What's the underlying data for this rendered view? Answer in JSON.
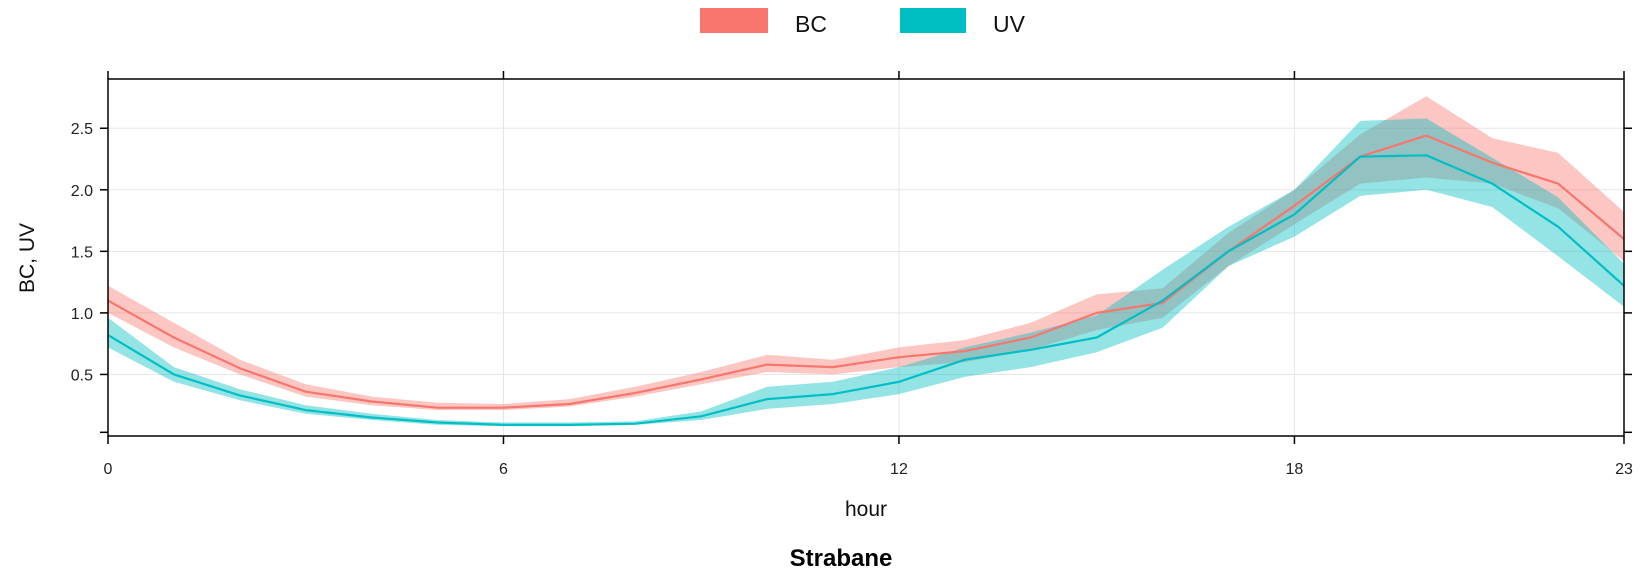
{
  "chart_data": {
    "type": "line",
    "xlabel": "hour",
    "ylabel": "BC, UV",
    "caption": "Strabane",
    "xlim": [
      0,
      23
    ],
    "ylim": [
      0,
      2.9
    ],
    "xticks": [
      0,
      6,
      12,
      18,
      23
    ],
    "yticks": [
      0.5,
      1.0,
      1.5,
      2.0,
      2.5
    ],
    "ytick_labels": [
      "0.5",
      "1.0",
      "1.5",
      "2.0",
      "2.5"
    ],
    "grid": true,
    "legend_position": "top",
    "series": [
      {
        "name": "BC",
        "color": "#F8766D",
        "x": [
          0,
          1,
          2,
          3,
          4,
          5,
          6,
          7,
          8,
          9,
          10,
          11,
          12,
          13,
          14,
          15,
          16,
          17,
          18,
          19,
          20,
          21,
          22,
          23
        ],
        "y": [
          1.1,
          0.8,
          0.55,
          0.36,
          0.28,
          0.23,
          0.23,
          0.26,
          0.35,
          0.46,
          0.58,
          0.56,
          0.64,
          0.69,
          0.8,
          1.0,
          1.08,
          1.5,
          1.87,
          2.27,
          2.44,
          2.22,
          2.05,
          1.6
        ],
        "lower": [
          1.0,
          0.72,
          0.5,
          0.32,
          0.25,
          0.21,
          0.21,
          0.24,
          0.32,
          0.42,
          0.52,
          0.5,
          0.56,
          0.6,
          0.7,
          0.86,
          0.96,
          1.38,
          1.72,
          2.05,
          2.1,
          2.05,
          1.85,
          1.42
        ],
        "upper": [
          1.22,
          0.92,
          0.62,
          0.42,
          0.32,
          0.27,
          0.26,
          0.3,
          0.4,
          0.52,
          0.66,
          0.62,
          0.72,
          0.78,
          0.92,
          1.15,
          1.2,
          1.65,
          2.0,
          2.45,
          2.76,
          2.42,
          2.3,
          1.82
        ]
      },
      {
        "name": "UV",
        "color": "#00BFC4",
        "x": [
          0,
          1,
          2,
          3,
          4,
          5,
          6,
          7,
          8,
          9,
          10,
          11,
          12,
          13,
          14,
          15,
          16,
          17,
          18,
          19,
          20,
          21,
          22,
          23
        ],
        "y": [
          0.82,
          0.5,
          0.33,
          0.21,
          0.15,
          0.11,
          0.09,
          0.09,
          0.1,
          0.16,
          0.3,
          0.34,
          0.44,
          0.62,
          0.7,
          0.8,
          1.1,
          1.5,
          1.8,
          2.27,
          2.28,
          2.05,
          1.7,
          1.22
        ],
        "lower": [
          0.72,
          0.44,
          0.29,
          0.18,
          0.13,
          0.09,
          0.08,
          0.08,
          0.09,
          0.13,
          0.22,
          0.26,
          0.34,
          0.48,
          0.56,
          0.68,
          0.88,
          1.38,
          1.62,
          1.95,
          2.0,
          1.86,
          1.46,
          1.05
        ],
        "upper": [
          0.96,
          0.56,
          0.38,
          0.25,
          0.18,
          0.13,
          0.11,
          0.11,
          0.12,
          0.2,
          0.4,
          0.44,
          0.56,
          0.72,
          0.84,
          0.98,
          1.35,
          1.7,
          2.0,
          2.56,
          2.58,
          2.26,
          1.94,
          1.4
        ]
      }
    ]
  }
}
